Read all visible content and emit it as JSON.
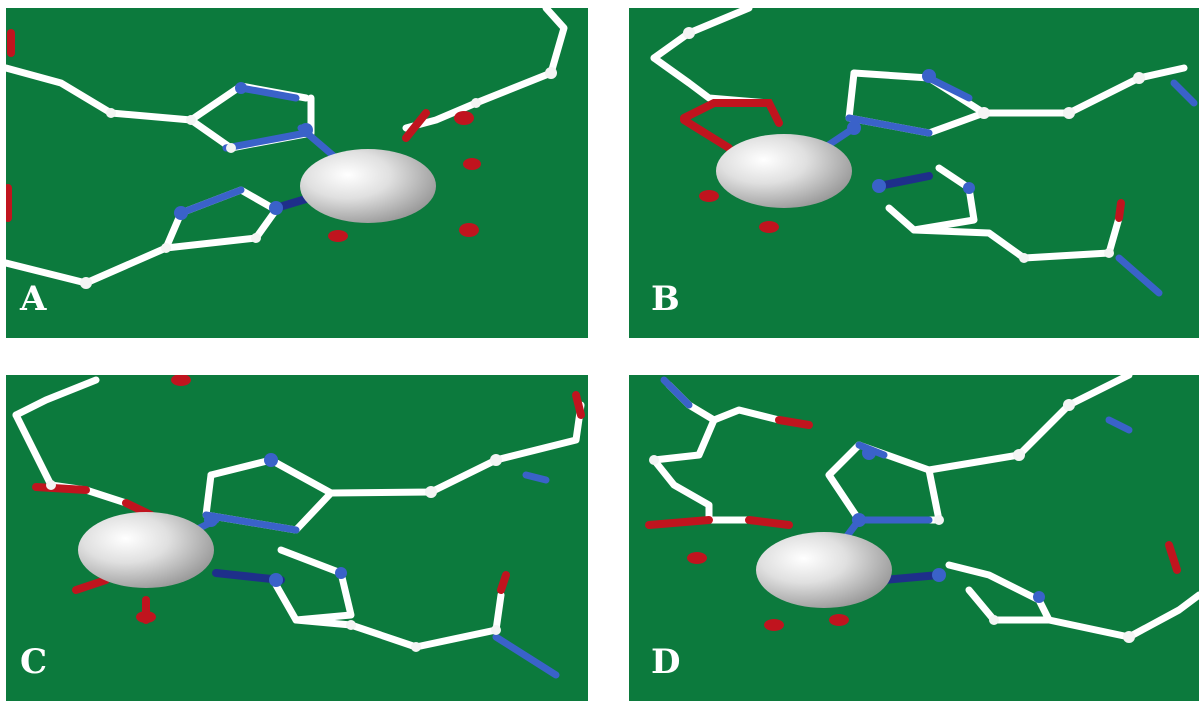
{
  "panels": [
    {
      "id": "A",
      "label": "A"
    },
    {
      "id": "B",
      "label": "B"
    },
    {
      "id": "C",
      "label": "C"
    },
    {
      "id": "D",
      "label": "D"
    }
  ],
  "colors": {
    "background": "#0c7a3d",
    "carbon_bond": "#ffffff",
    "nitrogen": "#3a62c9",
    "oxygen": "#c0141e",
    "metal_ion": "#d9d9d9"
  }
}
